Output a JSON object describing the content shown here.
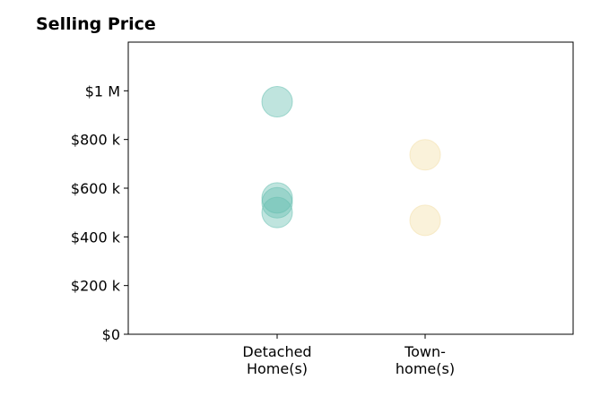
{
  "chart_data": {
    "type": "scatter",
    "title": "Selling Price",
    "xlabel": "",
    "ylabel": "",
    "categories": [
      [
        "Detached",
        "Home(s)"
      ],
      [
        "Town-",
        "home(s)"
      ]
    ],
    "ylim": [
      0,
      1200000
    ],
    "yticks": [
      {
        "value": 0,
        "label": "$0"
      },
      {
        "value": 200000,
        "label": "$200 k"
      },
      {
        "value": 400000,
        "label": "$400 k"
      },
      {
        "value": 600000,
        "label": "$600 k"
      },
      {
        "value": 800000,
        "label": "$800 k"
      },
      {
        "value": 1000000,
        "label": "$1 M"
      }
    ],
    "series": [
      {
        "category_index": 0,
        "color": "#66bfb0",
        "values": [
          955000,
          560000,
          540000,
          500000
        ]
      },
      {
        "category_index": 1,
        "color": "#f3dfa8",
        "values": [
          737000,
          468000
        ]
      }
    ],
    "grid": false,
    "legend": "none"
  }
}
